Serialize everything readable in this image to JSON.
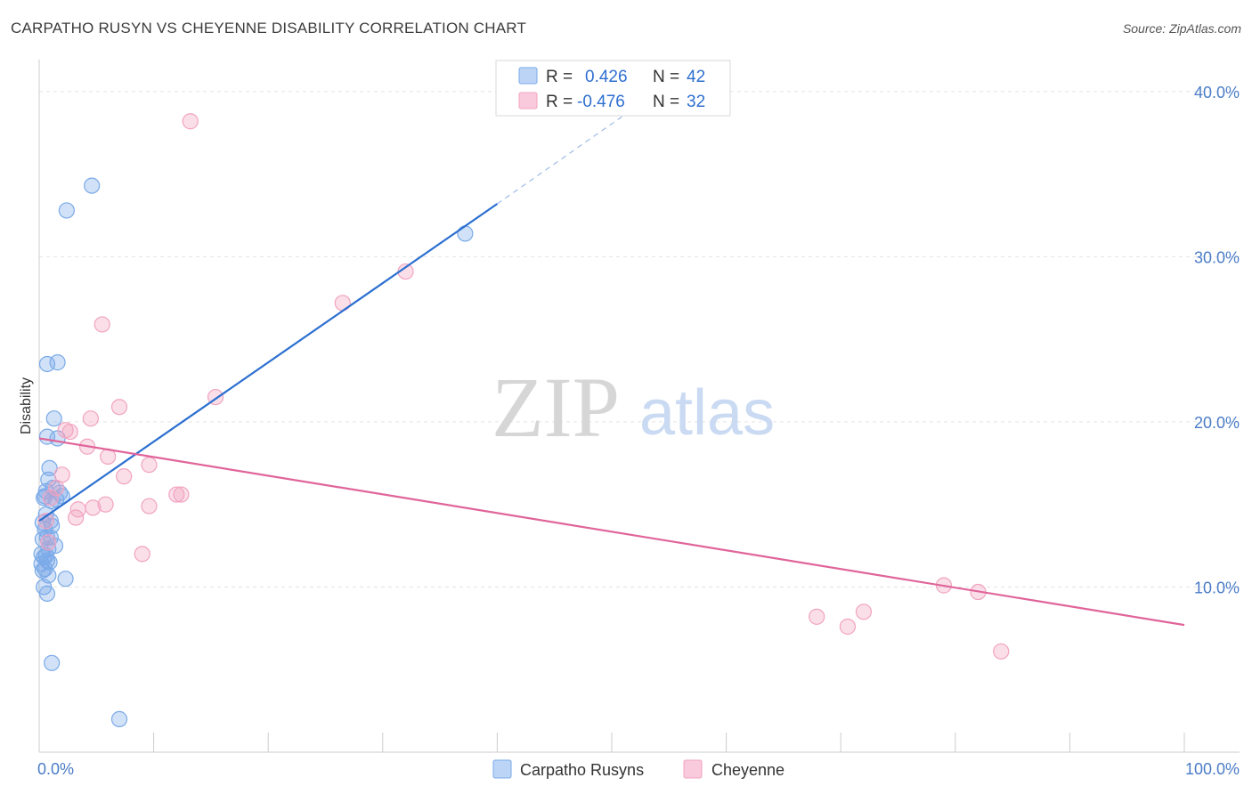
{
  "header": {
    "title": "CARPATHO RUSYN VS CHEYENNE DISABILITY CORRELATION CHART",
    "source": "Source: ZipAtlas.com"
  },
  "watermark": {
    "zip": "ZIP",
    "atlas": "atlas"
  },
  "chart_data": {
    "type": "scatter",
    "title": "CARPATHO RUSYN VS CHEYENNE DISABILITY CORRELATION CHART",
    "xlabel": "",
    "ylabel": "Disability",
    "xlim": [
      0,
      100
    ],
    "ylim": [
      0,
      41.5
    ],
    "x_tick_labels": [
      {
        "value": 0,
        "label": "0.0%"
      },
      {
        "value": 100,
        "label": "100.0%"
      }
    ],
    "y_tick_labels": [
      {
        "value": 10,
        "label": "10.0%"
      },
      {
        "value": 20,
        "label": "20.0%"
      },
      {
        "value": 30,
        "label": "30.0%"
      },
      {
        "value": 40,
        "label": "40.0%"
      }
    ],
    "legend": {
      "placement": "top-center",
      "r_label": "R =",
      "n_label": "N =",
      "entries": [
        {
          "series": "Carpatho Rusyns",
          "r": "0.426",
          "n": "42"
        },
        {
          "series": "Cheyenne",
          "r": "-0.476",
          "n": "32"
        }
      ]
    },
    "series": [
      {
        "name": "Carpatho Rusyns",
        "color": "#7aaae8",
        "line_color": "#2b6fd0",
        "trend": {
          "x0": 0,
          "y0": 14.0,
          "x1": 40,
          "y1": 33.2,
          "dash_to_x": 53,
          "dash_to_y": 39.5
        },
        "points": [
          [
            4.6,
            34.3
          ],
          [
            2.4,
            32.8
          ],
          [
            1.6,
            23.6
          ],
          [
            0.7,
            23.5
          ],
          [
            1.3,
            20.2
          ],
          [
            0.7,
            19.1
          ],
          [
            1.6,
            19.0
          ],
          [
            0.9,
            17.2
          ],
          [
            0.8,
            16.5
          ],
          [
            1.2,
            16.0
          ],
          [
            0.6,
            15.8
          ],
          [
            1.8,
            15.7
          ],
          [
            2.0,
            15.5
          ],
          [
            0.4,
            15.4
          ],
          [
            1.5,
            15.3
          ],
          [
            1.1,
            15.2
          ],
          [
            0.6,
            14.4
          ],
          [
            0.3,
            13.9
          ],
          [
            1.1,
            13.7
          ],
          [
            0.5,
            13.5
          ],
          [
            0.7,
            13.0
          ],
          [
            1.0,
            13.0
          ],
          [
            0.3,
            12.9
          ],
          [
            1.4,
            12.5
          ],
          [
            0.8,
            12.3
          ],
          [
            0.2,
            12.0
          ],
          [
            0.6,
            11.9
          ],
          [
            0.4,
            11.8
          ],
          [
            0.7,
            11.6
          ],
          [
            0.2,
            11.4
          ],
          [
            0.9,
            11.5
          ],
          [
            0.5,
            11.1
          ],
          [
            0.3,
            11.0
          ],
          [
            0.8,
            10.7
          ],
          [
            2.3,
            10.5
          ],
          [
            0.4,
            10.0
          ],
          [
            0.7,
            9.6
          ],
          [
            1.1,
            5.4
          ],
          [
            7.0,
            2.0
          ],
          [
            37.2,
            31.4
          ],
          [
            0.5,
            15.5
          ],
          [
            1.0,
            14.0
          ]
        ]
      },
      {
        "name": "Cheyenne",
        "color": "#f2a3c0",
        "line_color": "#e0649a",
        "trend": {
          "x0": 0,
          "y0": 19.0,
          "x1": 100,
          "y1": 7.7
        },
        "points": [
          [
            13.2,
            38.2
          ],
          [
            32.0,
            29.1
          ],
          [
            26.5,
            27.2
          ],
          [
            5.5,
            25.9
          ],
          [
            15.4,
            21.5
          ],
          [
            7.0,
            20.9
          ],
          [
            4.5,
            20.2
          ],
          [
            2.3,
            19.5
          ],
          [
            2.7,
            19.4
          ],
          [
            4.2,
            18.5
          ],
          [
            6.0,
            17.9
          ],
          [
            9.6,
            17.4
          ],
          [
            2.0,
            16.8
          ],
          [
            7.4,
            16.7
          ],
          [
            1.5,
            16.0
          ],
          [
            12.0,
            15.6
          ],
          [
            12.4,
            15.6
          ],
          [
            1.0,
            15.4
          ],
          [
            5.8,
            15.0
          ],
          [
            9.6,
            14.9
          ],
          [
            4.7,
            14.8
          ],
          [
            3.4,
            14.7
          ],
          [
            3.2,
            14.2
          ],
          [
            0.6,
            14.0
          ],
          [
            0.8,
            12.7
          ],
          [
            9.0,
            12.0
          ],
          [
            79.0,
            10.1
          ],
          [
            82.0,
            9.7
          ],
          [
            72.0,
            8.5
          ],
          [
            67.9,
            8.2
          ],
          [
            70.6,
            7.6
          ],
          [
            84.0,
            6.1
          ]
        ]
      }
    ]
  }
}
